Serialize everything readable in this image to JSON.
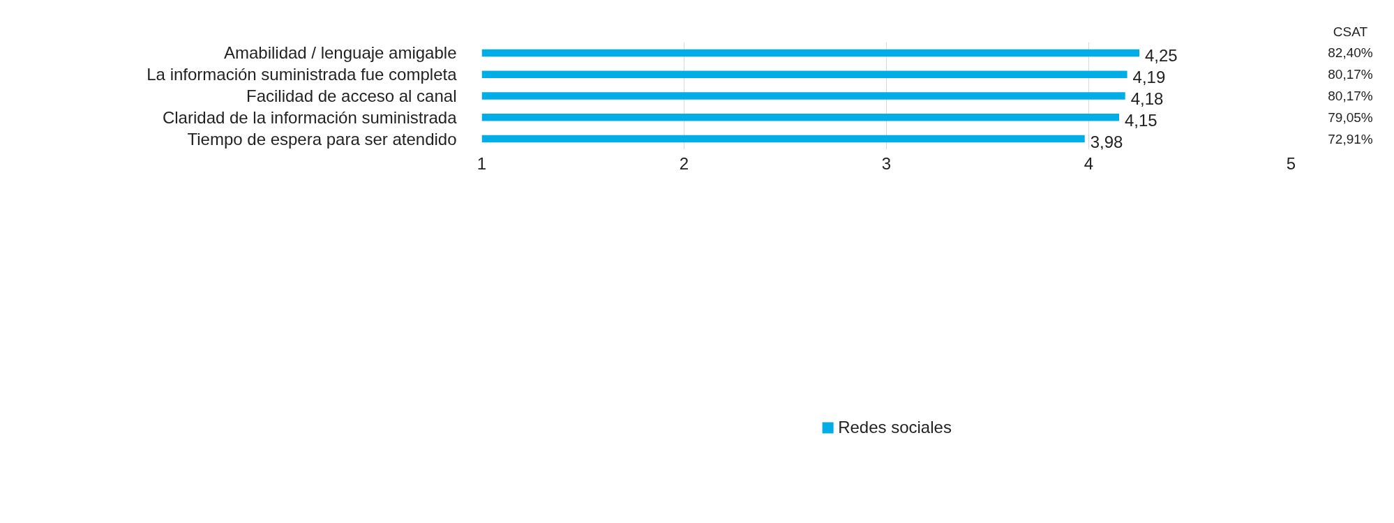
{
  "chart_data": {
    "type": "bar",
    "orientation": "horizontal",
    "categories": [
      "Amabilidad / lenguaje amigable",
      "La información suministrada fue completa",
      "Facilidad de acceso al canal",
      "Claridad de la información suministrada",
      "Tiempo de espera para ser atendido"
    ],
    "series": [
      {
        "name": "Redes sociales",
        "color": "#00ade6",
        "values": [
          4.25,
          4.19,
          4.18,
          4.15,
          3.98
        ],
        "value_labels": [
          "4,25",
          "4,19",
          "4,18",
          "4,15",
          "3,98"
        ]
      }
    ],
    "xlim": [
      1,
      5
    ],
    "xticks": [
      1,
      2,
      3,
      4,
      5
    ],
    "grid": "x",
    "legend": "bottom",
    "annotations": [
      "CSAT",
      "82,40%",
      "80,17%",
      "80,17%",
      "79,05%",
      "72,91%"
    ]
  }
}
